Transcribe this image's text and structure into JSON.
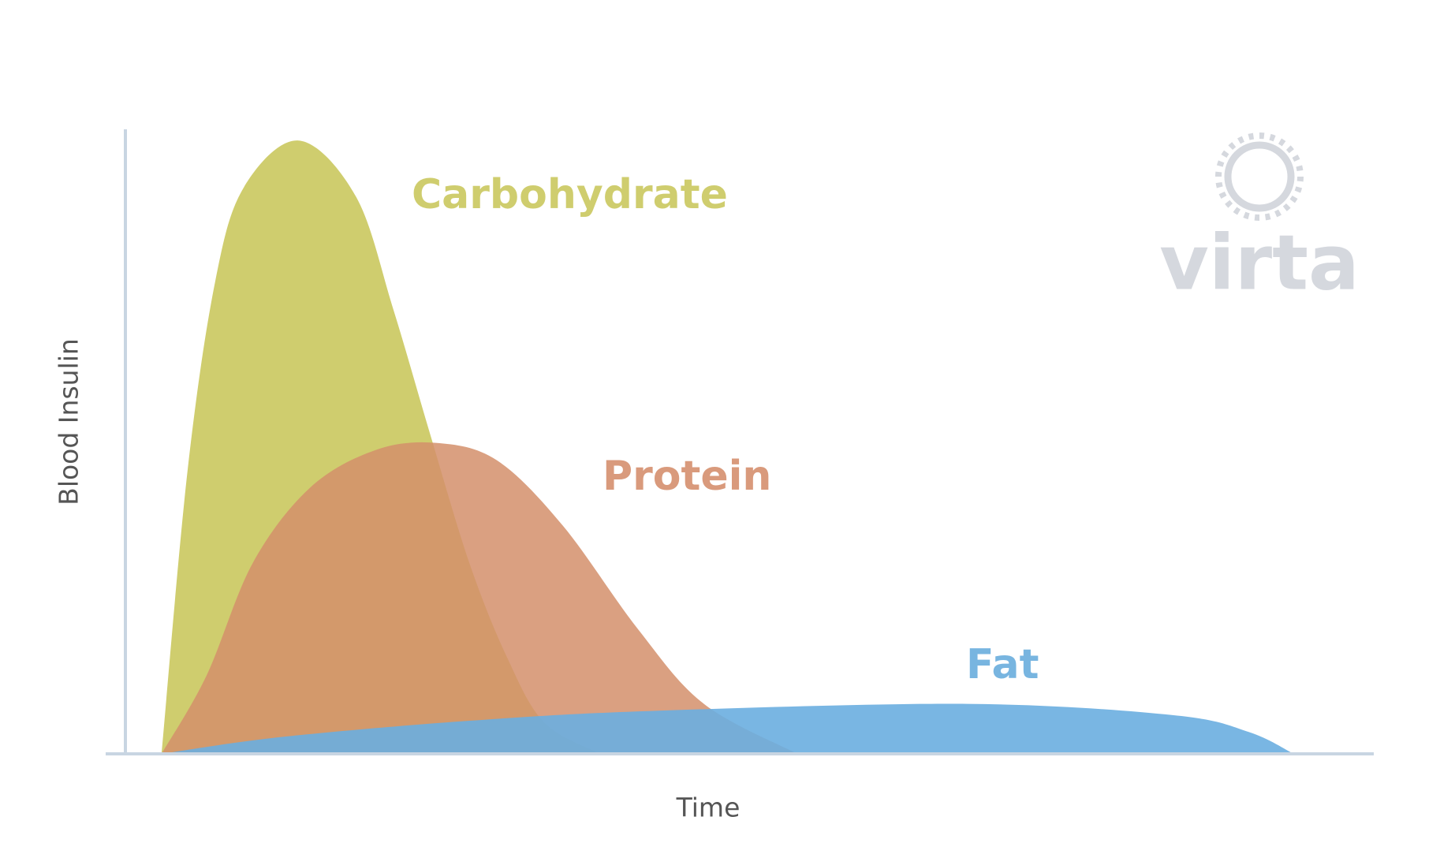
{
  "chart_data": {
    "type": "area",
    "ylabel": "Blood Insulin",
    "xlabel": "Time",
    "xlim": [
      0,
      100
    ],
    "ylim": [
      0,
      100
    ],
    "series": [
      {
        "name": "Carbohydrate",
        "color": "#cfcd6e",
        "x": [
          2.9,
          5.0,
          7.2,
          9.5,
          13.9,
          18.5,
          21.5,
          24.5,
          27.6,
          30.6,
          33.6,
          38.1
        ],
        "values": [
          0,
          45.6,
          75.6,
          90.7,
          98.2,
          89.2,
          71.1,
          50.8,
          30.5,
          15.5,
          5,
          0
        ]
      },
      {
        "name": "Protein",
        "color": "#d38f6b",
        "x": [
          2.9,
          6.5,
          10.2,
          14.8,
          20,
          24.9,
          29.8,
          35.1,
          41.1,
          46.4,
          53.9
        ],
        "values": [
          0,
          12.5,
          30.5,
          42.6,
          48.6,
          49.8,
          47,
          36.5,
          20,
          8,
          0
        ]
      },
      {
        "name": "Fat",
        "color": "#6aaee0",
        "x": [
          2.9,
          12.5,
          27.6,
          42.6,
          67.5,
          84,
          90.1,
          93.7
        ],
        "values": [
          0,
          2.7,
          5.3,
          6.9,
          8,
          6.2,
          3.5,
          0
        ]
      }
    ]
  },
  "logo_text": "virta"
}
